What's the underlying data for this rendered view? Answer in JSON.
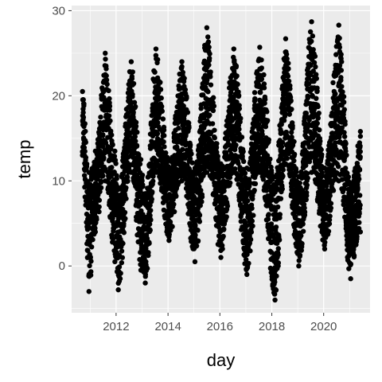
{
  "chart_data": {
    "type": "scatter",
    "title": "",
    "xlabel": "day",
    "ylabel": "temp",
    "x_type": "date",
    "xlim": [
      "2010-04-15",
      "2021-10-15"
    ],
    "ylim": [
      -5.5,
      30.6
    ],
    "x_ticks": [
      "2012-01-01",
      "2014-01-01",
      "2016-01-01",
      "2018-01-01",
      "2020-01-01"
    ],
    "x_tick_labels": [
      "2012",
      "2014",
      "2016",
      "2018",
      "2020"
    ],
    "y_ticks": [
      0,
      10,
      20,
      30
    ],
    "y_tick_labels": [
      "0",
      "10",
      "20",
      "30"
    ],
    "grid": true,
    "legend": "none",
    "series": [
      {
        "color": "#000000",
        "seasonal_profile": [
          {
            "x": "2010-09-15",
            "low": 13.0,
            "high": 20.5
          },
          {
            "x": "2010-12-15",
            "low": -3.0,
            "high": 11.0
          },
          {
            "x": "2011-03-15",
            "low": 4.0,
            "high": 13.5
          },
          {
            "x": "2011-08-01",
            "low": 10.0,
            "high": 25.0
          },
          {
            "x": "2011-12-15",
            "low": 0.5,
            "high": 13.5
          },
          {
            "x": "2012-02-01",
            "low": -2.8,
            "high": 9.0
          },
          {
            "x": "2012-08-01",
            "low": 11.0,
            "high": 24.0
          },
          {
            "x": "2012-12-15",
            "low": -0.5,
            "high": 12.5
          },
          {
            "x": "2013-02-15",
            "low": -2.0,
            "high": 8.5
          },
          {
            "x": "2013-07-15",
            "low": 11.0,
            "high": 25.5
          },
          {
            "x": "2014-01-15",
            "low": 3.0,
            "high": 12.5
          },
          {
            "x": "2014-07-15",
            "low": 10.0,
            "high": 24.0
          },
          {
            "x": "2015-01-15",
            "low": 0.5,
            "high": 11.5
          },
          {
            "x": "2015-07-01",
            "low": 11.0,
            "high": 28.0
          },
          {
            "x": "2016-01-15",
            "low": 1.0,
            "high": 12.0
          },
          {
            "x": "2016-07-15",
            "low": 11.0,
            "high": 25.5
          },
          {
            "x": "2017-01-15",
            "low": -1.0,
            "high": 11.5
          },
          {
            "x": "2017-07-15",
            "low": 11.0,
            "high": 25.7
          },
          {
            "x": "2018-02-15",
            "low": -4.0,
            "high": 10.5
          },
          {
            "x": "2018-07-15",
            "low": 12.0,
            "high": 26.7
          },
          {
            "x": "2019-01-15",
            "low": 0.0,
            "high": 10.5
          },
          {
            "x": "2019-07-15",
            "low": 11.0,
            "high": 28.7
          },
          {
            "x": "2020-01-15",
            "low": 2.0,
            "high": 11.5
          },
          {
            "x": "2020-08-01",
            "low": 10.0,
            "high": 28.3
          },
          {
            "x": "2021-01-15",
            "low": -1.5,
            "high": 9.5
          },
          {
            "x": "2021-06-01",
            "low": 4.0,
            "high": 15.8
          }
        ]
      }
    ]
  }
}
